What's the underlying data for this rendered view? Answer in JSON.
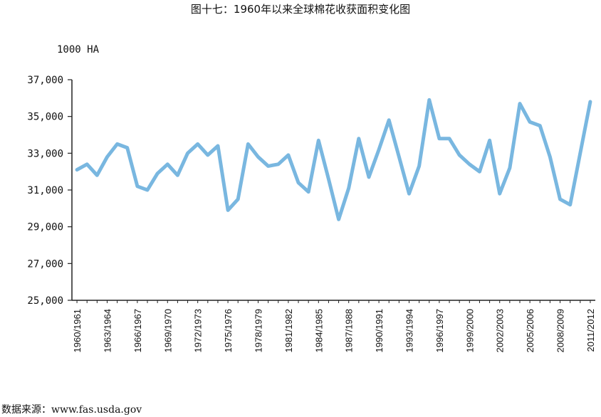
{
  "header": {
    "title": "图十七：1960年以来全球棉花收获面积变化图",
    "unit": "1000 HA",
    "source": "数据来源：www.fas.usda.gov"
  },
  "colors": {
    "line": "#79B7E0",
    "axis": "#222222"
  },
  "chart_data": {
    "type": "line",
    "title": "图十七：1960年以来全球棉花收获面积变化图",
    "ylabel": "1000 HA",
    "xlabel": "",
    "ylim": [
      25000,
      37000
    ],
    "yticks": [
      25000,
      27000,
      29000,
      31000,
      33000,
      35000,
      37000
    ],
    "ytick_labels": [
      "25,000",
      "27,000",
      "29,000",
      "31,000",
      "33,000",
      "35,000",
      "37,000"
    ],
    "xtick_labels": [
      "1960/1961",
      "1963/1964",
      "1966/1967",
      "1969/1970",
      "1972/1973",
      "1975/1976",
      "1978/1979",
      "1981/1982",
      "1984/1985",
      "1987/1988",
      "1990/1991",
      "1993/1994",
      "1996/1997",
      "1999/2000",
      "2002/2003",
      "2005/2006",
      "2008/2009",
      "2011/2012"
    ],
    "grid": false,
    "legend": "none",
    "series": [
      {
        "x": [
          "1960/1961",
          "1961/1962",
          "1962/1963",
          "1963/1964",
          "1964/1965",
          "1965/1966",
          "1966/1967",
          "1967/1968",
          "1968/1969",
          "1969/1970",
          "1970/1971",
          "1971/1972",
          "1972/1973",
          "1973/1974",
          "1974/1975",
          "1975/1976",
          "1976/1977",
          "1977/1978",
          "1978/1979",
          "1979/1980",
          "1980/1981",
          "1981/1982",
          "1982/1983",
          "1983/1984",
          "1984/1985",
          "1985/1986",
          "1986/1987",
          "1987/1988",
          "1988/1989",
          "1989/1990",
          "1990/1991",
          "1991/1992",
          "1992/1993",
          "1993/1994",
          "1994/1995",
          "1995/1996",
          "1996/1997",
          "1997/1998",
          "1998/1999",
          "1999/2000",
          "2000/2001",
          "2001/2002",
          "2002/2003",
          "2003/2004",
          "2004/2005",
          "2005/2006",
          "2006/2007",
          "2007/2008",
          "2008/2009",
          "2009/2010",
          "2010/2011",
          "2011/2012"
        ],
        "values": [
          32100,
          32400,
          31800,
          32800,
          33500,
          33300,
          31200,
          31000,
          31900,
          32400,
          31800,
          33000,
          33500,
          32900,
          33400,
          29900,
          30500,
          33500,
          32800,
          32300,
          32400,
          32900,
          31400,
          30900,
          33700,
          31600,
          29400,
          31100,
          33800,
          31700,
          33200,
          34800,
          32800,
          30800,
          32300,
          35900,
          33800,
          33800,
          32900,
          32400,
          32000,
          33700,
          30800,
          32200,
          35700,
          34700,
          34500,
          32800,
          30500,
          30200,
          33000,
          35800
        ]
      }
    ]
  }
}
